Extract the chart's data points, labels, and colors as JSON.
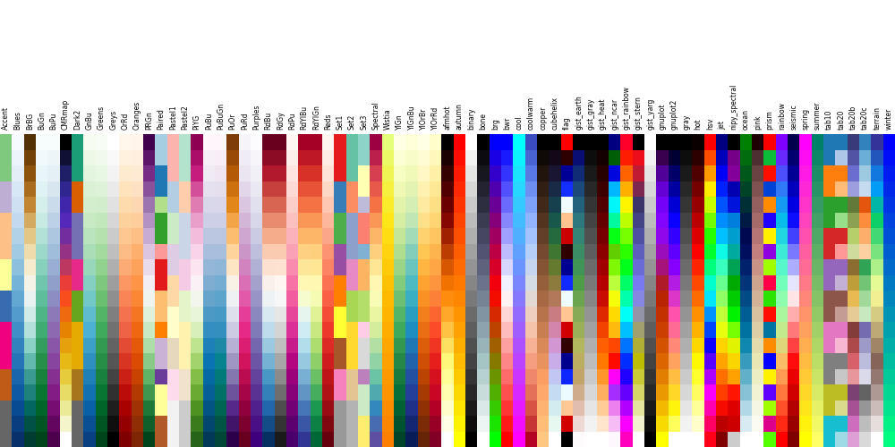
{
  "colormaps": [
    "Accent",
    "Blues",
    "BrBG",
    "BuGn",
    "BuPu",
    "CMRmap",
    "Dark2",
    "GnBu",
    "Greens",
    "Greys",
    "OrRd",
    "Oranges",
    "PRGn",
    "Paired",
    "Pastel1",
    "Pastel2",
    "PiYG",
    "PuBu",
    "PuBuGn",
    "PuOr",
    "PuRd",
    "Purples",
    "RdBu",
    "RdGy",
    "RdPu",
    "RdYlBu",
    "RdYlGn",
    "Reds",
    "Set1",
    "Set2",
    "Set3",
    "Spectral",
    "Wistia",
    "YlGn",
    "YlGnBu",
    "YlOrBr",
    "YlOrRd",
    "afmhot",
    "autumn",
    "binary",
    "bone",
    "brg",
    "bwr",
    "cool",
    "coolwarm",
    "copper",
    "cubehelix",
    "flag",
    "gist_earth",
    "gist_gray",
    "gist_heat",
    "gist_ncar",
    "gist_rainbow",
    "gist_stern",
    "gist_yarg",
    "gnuplot",
    "gnuplot2",
    "gray",
    "hot",
    "hsv",
    "jet",
    "nipy_spectral",
    "ocean",
    "pink",
    "prism",
    "rainbow",
    "seismic",
    "spring",
    "summer",
    "tab10",
    "tab20",
    "tab20b",
    "tab20c",
    "terrain",
    "winter"
  ],
  "n_colors": 20,
  "fig_width": 10.0,
  "fig_height": 5.0,
  "dpi": 100,
  "label_fontsize": 5.5,
  "background_color": "#ffffff"
}
